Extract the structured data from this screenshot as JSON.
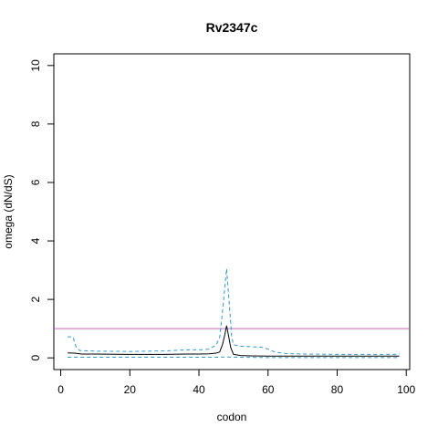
{
  "chart_data": {
    "type": "line",
    "title": "Rv2347c",
    "xlabel": "codon",
    "ylabel": "omega (dN/dS)",
    "xlim": [
      -2,
      101
    ],
    "ylim": [
      -0.4,
      10.4
    ],
    "x_ticks": [
      0,
      20,
      40,
      60,
      80,
      100
    ],
    "y_ticks": [
      0,
      2,
      4,
      6,
      8,
      10
    ],
    "grid": false,
    "reference_line": {
      "y": 1,
      "color": "#cc66cc"
    },
    "series": [
      {
        "style": "solid",
        "color": "#000000",
        "points": [
          [
            2,
            0.17
          ],
          [
            4,
            0.16
          ],
          [
            6,
            0.13
          ],
          [
            10,
            0.13
          ],
          [
            20,
            0.12
          ],
          [
            30,
            0.12
          ],
          [
            36,
            0.13
          ],
          [
            40,
            0.13
          ],
          [
            43,
            0.14
          ],
          [
            45,
            0.16
          ],
          [
            46,
            0.2
          ],
          [
            46.8,
            0.45
          ],
          [
            47.5,
            0.8
          ],
          [
            48,
            1.1
          ],
          [
            48.5,
            0.8
          ],
          [
            49.2,
            0.35
          ],
          [
            50,
            0.12
          ],
          [
            52,
            0.08
          ],
          [
            55,
            0.07
          ],
          [
            60,
            0.06
          ],
          [
            70,
            0.06
          ],
          [
            80,
            0.06
          ],
          [
            90,
            0.06
          ],
          [
            98,
            0.06
          ]
        ]
      },
      {
        "style": "dashed",
        "color": "#3399cc",
        "points": [
          [
            2,
            0.72
          ],
          [
            3.5,
            0.72
          ],
          [
            4.5,
            0.35
          ],
          [
            5.5,
            0.25
          ],
          [
            10,
            0.23
          ],
          [
            20,
            0.22
          ],
          [
            30,
            0.24
          ],
          [
            36,
            0.27
          ],
          [
            38,
            0.28
          ],
          [
            40,
            0.27
          ],
          [
            43,
            0.3
          ],
          [
            45,
            0.45
          ],
          [
            46,
            0.7
          ],
          [
            47,
            1.8
          ],
          [
            48,
            3.05
          ],
          [
            48.8,
            1.8
          ],
          [
            49.5,
            0.7
          ],
          [
            50,
            0.45
          ],
          [
            52,
            0.4
          ],
          [
            55,
            0.38
          ],
          [
            58,
            0.37
          ],
          [
            60,
            0.3
          ],
          [
            62,
            0.2
          ],
          [
            65,
            0.15
          ],
          [
            70,
            0.13
          ],
          [
            80,
            0.12
          ],
          [
            90,
            0.12
          ],
          [
            97,
            0.12
          ],
          [
            98,
            0.16
          ]
        ]
      },
      {
        "style": "dashed",
        "color": "#3399cc",
        "points": [
          [
            2,
            0.02
          ],
          [
            10,
            0.02
          ],
          [
            30,
            0.02
          ],
          [
            45,
            0.02
          ],
          [
            48,
            0.03
          ],
          [
            52,
            0.02
          ],
          [
            60,
            0.01
          ],
          [
            70,
            0.01
          ],
          [
            80,
            0.01
          ],
          [
            98,
            0.01
          ]
        ]
      }
    ]
  }
}
